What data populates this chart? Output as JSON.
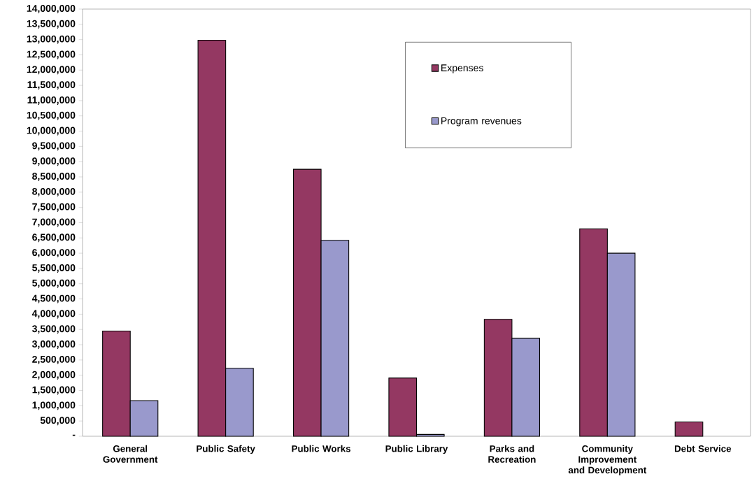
{
  "chart_data": {
    "type": "bar",
    "categories": [
      "General Government",
      "Public Safety",
      "Public Works",
      "Public Library",
      "Parks and Recreation",
      "Community Improvement and Development",
      "Debt Service"
    ],
    "series": [
      {
        "name": "Expenses",
        "color": "#943862",
        "values": [
          3450000,
          12980000,
          8750000,
          1910000,
          3830000,
          6800000,
          470000
        ]
      },
      {
        "name": "Program revenues",
        "color": "#9999cc",
        "values": [
          1170000,
          2230000,
          6420000,
          60000,
          3210000,
          6000000,
          null
        ]
      }
    ],
    "ylim": [
      0,
      14000000
    ],
    "yticks": [
      {
        "value": 0,
        "label": "-"
      },
      {
        "value": 500000,
        "label": "500,000"
      },
      {
        "value": 1000000,
        "label": "1,000,000"
      },
      {
        "value": 1500000,
        "label": "1,500,000"
      },
      {
        "value": 2000000,
        "label": "2,000,000"
      },
      {
        "value": 2500000,
        "label": "2,500,000"
      },
      {
        "value": 3000000,
        "label": "3,000,000"
      },
      {
        "value": 3500000,
        "label": "3,500,000"
      },
      {
        "value": 4000000,
        "label": "4,000,000"
      },
      {
        "value": 4500000,
        "label": "4,500,000"
      },
      {
        "value": 5000000,
        "label": "5,000,000"
      },
      {
        "value": 5500000,
        "label": "5,500,000"
      },
      {
        "value": 6000000,
        "label": "6,000,000"
      },
      {
        "value": 6500000,
        "label": "6,500,000"
      },
      {
        "value": 7000000,
        "label": "7,000,000"
      },
      {
        "value": 7500000,
        "label": "7,500,000"
      },
      {
        "value": 8000000,
        "label": "8,000,000"
      },
      {
        "value": 8500000,
        "label": "8,500,000"
      },
      {
        "value": 9000000,
        "label": "9,000,000"
      },
      {
        "value": 9500000,
        "label": "9,500,000"
      },
      {
        "value": 10000000,
        "label": "10,000,000"
      },
      {
        "value": 10500000,
        "label": "10,500,000"
      },
      {
        "value": 11000000,
        "label": "11,000,000"
      },
      {
        "value": 11500000,
        "label": "11,500,000"
      },
      {
        "value": 12000000,
        "label": "12,000,000"
      },
      {
        "value": 12500000,
        "label": "12,500,000"
      },
      {
        "value": 13000000,
        "label": "13,000,000"
      },
      {
        "value": 13500000,
        "label": "13,500,000"
      },
      {
        "value": 14000000,
        "label": "14,000,000"
      }
    ],
    "grid": false,
    "legend": "top right"
  }
}
